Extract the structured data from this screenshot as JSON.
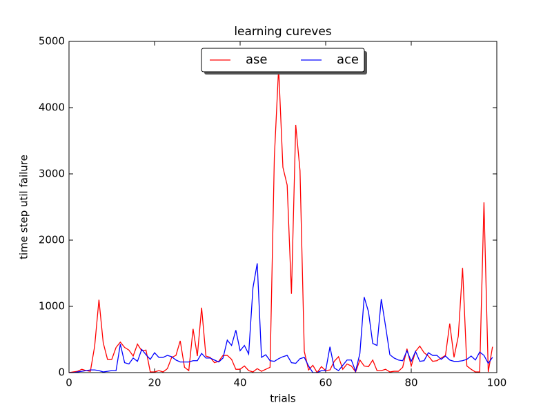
{
  "chart_data": {
    "type": "line",
    "title": "learning cureves",
    "x_label": "trials",
    "y_label": "time step util failure",
    "x": [
      0,
      1,
      2,
      3,
      4,
      5,
      6,
      7,
      8,
      9,
      10,
      11,
      12,
      13,
      14,
      15,
      16,
      17,
      18,
      19,
      20,
      21,
      22,
      23,
      24,
      25,
      26,
      27,
      28,
      29,
      30,
      31,
      32,
      33,
      34,
      35,
      36,
      37,
      38,
      39,
      40,
      41,
      42,
      43,
      44,
      45,
      46,
      47,
      48,
      49,
      50,
      51,
      52,
      53,
      54,
      55,
      56,
      57,
      58,
      59,
      60,
      61,
      62,
      63,
      64,
      65,
      66,
      67,
      68,
      69,
      70,
      71,
      72,
      73,
      74,
      75,
      76,
      77,
      78,
      79,
      80,
      81,
      82,
      83,
      84,
      85,
      86,
      87,
      88,
      89,
      90,
      91,
      92,
      93,
      94,
      95,
      96,
      97,
      98,
      99
    ],
    "series": [
      {
        "name": "ase",
        "color": "#ff0000",
        "values": [
          0,
          10,
          20,
          50,
          30,
          20,
          400,
          1100,
          450,
          200,
          200,
          380,
          460,
          380,
          340,
          250,
          430,
          330,
          340,
          10,
          10,
          30,
          10,
          60,
          230,
          260,
          480,
          80,
          30,
          660,
          250,
          980,
          250,
          230,
          150,
          170,
          260,
          260,
          200,
          50,
          50,
          100,
          30,
          10,
          60,
          20,
          50,
          80,
          3250,
          4600,
          3100,
          2830,
          1190,
          3740,
          3050,
          320,
          40,
          110,
          0,
          90,
          30,
          40,
          170,
          240,
          50,
          130,
          100,
          10,
          190,
          100,
          90,
          190,
          30,
          30,
          50,
          10,
          20,
          20,
          80,
          360,
          100,
          320,
          400,
          300,
          250,
          170,
          180,
          220,
          260,
          740,
          230,
          550,
          1580,
          100,
          50,
          10,
          10,
          2570,
          10,
          390
        ]
      },
      {
        "name": "ace",
        "color": "#0000ff",
        "values": [
          0,
          0,
          10,
          20,
          30,
          40,
          40,
          30,
          10,
          20,
          30,
          30,
          430,
          150,
          130,
          220,
          170,
          350,
          270,
          200,
          300,
          230,
          230,
          260,
          240,
          190,
          160,
          160,
          160,
          180,
          180,
          290,
          220,
          220,
          190,
          160,
          220,
          490,
          410,
          640,
          330,
          410,
          280,
          1280,
          1650,
          230,
          270,
          180,
          170,
          210,
          240,
          260,
          150,
          140,
          210,
          230,
          100,
          0,
          0,
          30,
          30,
          390,
          70,
          30,
          110,
          190,
          190,
          20,
          290,
          1140,
          920,
          440,
          410,
          1110,
          700,
          270,
          220,
          190,
          180,
          330,
          170,
          320,
          170,
          180,
          300,
          260,
          260,
          200,
          250,
          190,
          170,
          170,
          180,
          200,
          250,
          190,
          310,
          260,
          140,
          230
        ]
      }
    ],
    "xlim": [
      0,
      100
    ],
    "ylim": [
      0,
      5000
    ],
    "xticks": [
      0,
      20,
      40,
      60,
      80,
      100
    ],
    "yticks": [
      0,
      1000,
      2000,
      3000,
      4000,
      5000
    ],
    "legend": "upper center",
    "legend_columns": 2
  }
}
